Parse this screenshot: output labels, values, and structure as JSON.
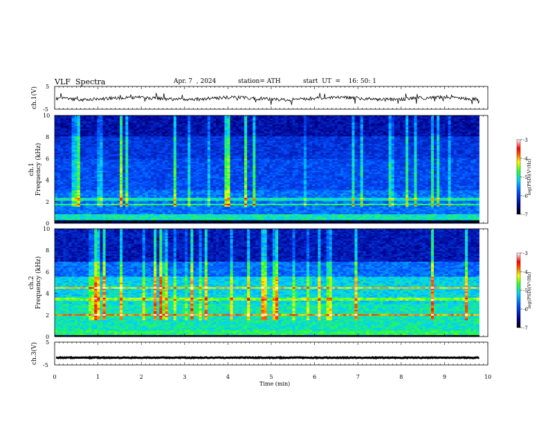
{
  "header": {
    "title": "VLF  Spectra",
    "date": "Apr. 7  , 2024",
    "station": "station= ATH",
    "start": "start  UT  =    16: 50: 1"
  },
  "chart_data": [
    {
      "type": "line",
      "name": "ch1-waveform",
      "ylabel": "ch.1(V)",
      "ylim": [
        -5,
        5
      ],
      "yticks": [
        "5",
        "-5"
      ],
      "xlim": [
        0,
        10
      ],
      "baseline": 0
    },
    {
      "type": "heatmap",
      "name": "ch1-spectrogram",
      "ylabel": "ch.1\nFrequency (kHz)",
      "ylabel_lines": [
        "ch.1",
        "Frequency (kHz)"
      ],
      "ylim": [
        0,
        10
      ],
      "yticks": [
        "10",
        "8",
        "6",
        "4",
        "2",
        "0"
      ],
      "xlim": [
        0,
        9.8
      ],
      "colorbar": {
        "label": "log(PSD)(V²/Hz)",
        "ticks": [
          "-3",
          "-4",
          "-5",
          "-6",
          "-7"
        ],
        "range": [
          -7,
          -3
        ]
      }
    },
    {
      "type": "heatmap",
      "name": "ch2-spectrogram",
      "ylabel_lines": [
        "ch.2",
        "Frequency (kHz)"
      ],
      "ylim": [
        0,
        10
      ],
      "yticks": [
        "10",
        "8",
        "6",
        "4",
        "2",
        "0"
      ],
      "xlim": [
        0,
        9.8
      ],
      "colorbar": {
        "label": "log(PSD)(V²/Hz)",
        "ticks": [
          "-3",
          "-4",
          "-5",
          "-6",
          "-7"
        ],
        "range": [
          -7,
          -3
        ]
      }
    },
    {
      "type": "line",
      "name": "ch3-waveform",
      "ylabel": "ch.3(V)",
      "ylim": [
        -5,
        5
      ],
      "yticks": [
        "5",
        "-5"
      ],
      "xlim": [
        0,
        10
      ],
      "baseline": -1
    }
  ],
  "xaxis": {
    "label": "Time  (min)",
    "ticks": [
      "0",
      "1",
      "2",
      "3",
      "4",
      "5",
      "6",
      "7",
      "8",
      "9",
      "10"
    ],
    "range": [
      0,
      10
    ]
  },
  "colors": {
    "low": "#000080",
    "mid": "#00c0ff",
    "green": "#40ff40",
    "yellow": "#ffff00",
    "high": "#ff0000",
    "top": "#ffffff"
  }
}
